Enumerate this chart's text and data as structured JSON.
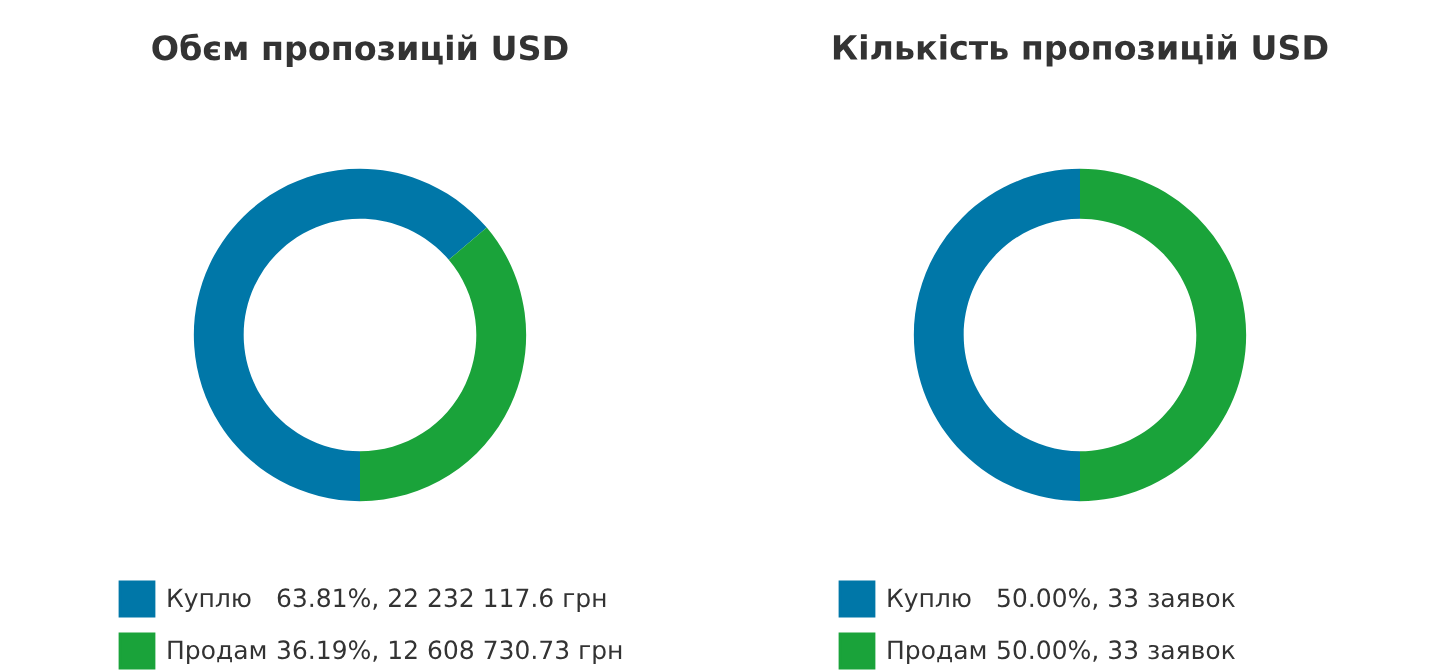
{
  "chart_data": [
    {
      "type": "donut",
      "title": "Обєм пропозицій USD",
      "categories": [
        "Куплю",
        "Продам"
      ],
      "values": [
        22232117.6,
        12608730.73
      ],
      "colors": [
        "#0077a8",
        "#1aa33a"
      ],
      "value_labels": [
        "63.81%, 22 232 117.6 грн",
        "36.19%, 12 608 730.73 грн"
      ],
      "legend": "bottom"
    },
    {
      "type": "donut",
      "title": "Кількість пропозицій USD",
      "categories": [
        "Куплю",
        "Продам"
      ],
      "values": [
        33,
        33
      ],
      "colors": [
        "#0077a8",
        "#1aa33a"
      ],
      "value_labels": [
        "50.00%, 33 заявок",
        "50.00%, 33 заявок"
      ],
      "legend": "bottom"
    }
  ]
}
